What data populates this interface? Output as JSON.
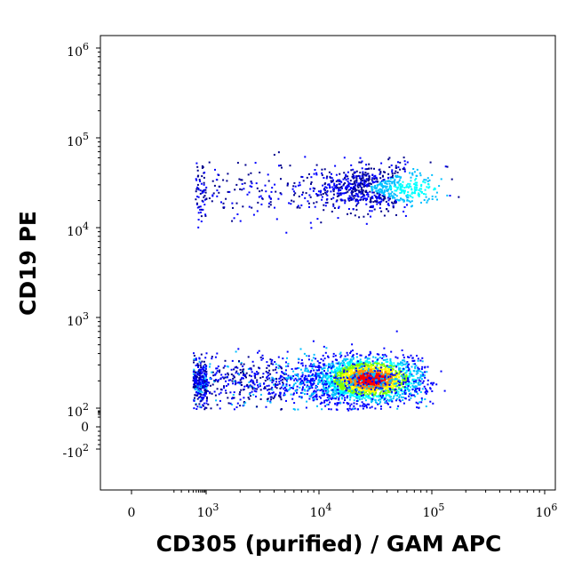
{
  "chart_data": {
    "type": "scatter",
    "title": "",
    "xlabel": "CD305 (purified) / GAM APC",
    "ylabel": "CD19 PE",
    "x_scale": "biexponential",
    "y_scale": "biexponential",
    "xlim": [
      -100,
      1000000
    ],
    "ylim": [
      -200,
      1000000
    ],
    "grid": false,
    "legend": "none",
    "x_ticks": [
      {
        "value": 0,
        "base": "0",
        "exp": ""
      },
      {
        "value": 1000,
        "base": "10",
        "exp": "3"
      },
      {
        "value": 10000,
        "base": "10",
        "exp": "4"
      },
      {
        "value": 100000,
        "base": "10",
        "exp": "5"
      },
      {
        "value": 1000000,
        "base": "10",
        "exp": "6"
      }
    ],
    "y_ticks": [
      {
        "value": -100,
        "base": "-10",
        "exp": "2"
      },
      {
        "value": 0,
        "base": "0",
        "exp": ""
      },
      {
        "value": 100,
        "base": "10",
        "exp": "2"
      },
      {
        "value": 1000,
        "base": "10",
        "exp": "3"
      },
      {
        "value": 10000,
        "base": "10",
        "exp": "4"
      },
      {
        "value": 100000,
        "base": "10",
        "exp": "5"
      },
      {
        "value": 1000000,
        "base": "10",
        "exp": "6"
      }
    ],
    "density_colors": [
      "#00008b",
      "#0000ff",
      "#00bfff",
      "#00ffff",
      "#7fff00",
      "#ffff00",
      "#ff8c00",
      "#ff0000"
    ],
    "populations": [
      {
        "description": "CD19 negative",
        "x_center": 25000,
        "y_center": 200,
        "x_range": [
          300,
          200000
        ],
        "y_range": [
          80,
          700
        ],
        "density": "high"
      },
      {
        "description": "CD19 positive",
        "x_center": 30000,
        "y_center": 28000,
        "x_range": [
          500,
          500000
        ],
        "y_range": [
          5000,
          100000
        ],
        "density": "low"
      }
    ]
  }
}
